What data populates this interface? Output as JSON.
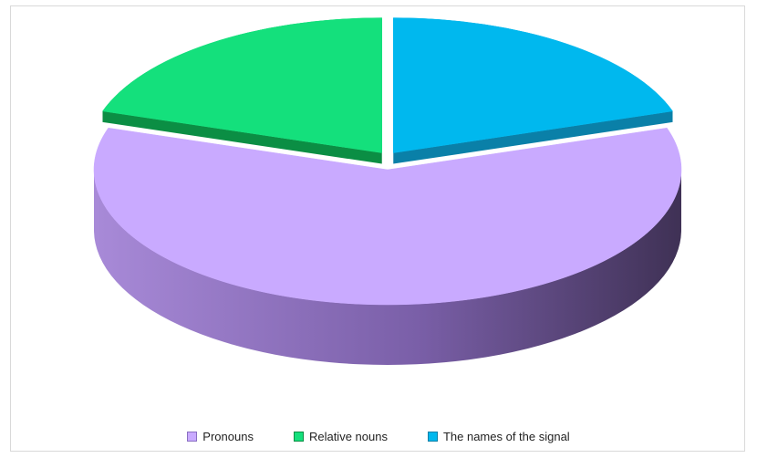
{
  "chart_data": {
    "type": "pie",
    "style": "3d-exploded",
    "title": "",
    "labels": [
      "Pronouns",
      "Relative nouns",
      "The names of the signal"
    ],
    "values": [
      60,
      20,
      20
    ],
    "colors": [
      "#c9aaff",
      "#14e07c",
      "#00b8ee"
    ],
    "side_colors": [
      "#8a6fc2",
      "#0b8e44",
      "#0a80a8"
    ],
    "exploded": [
      false,
      true,
      true
    ],
    "legend_position": "bottom"
  }
}
